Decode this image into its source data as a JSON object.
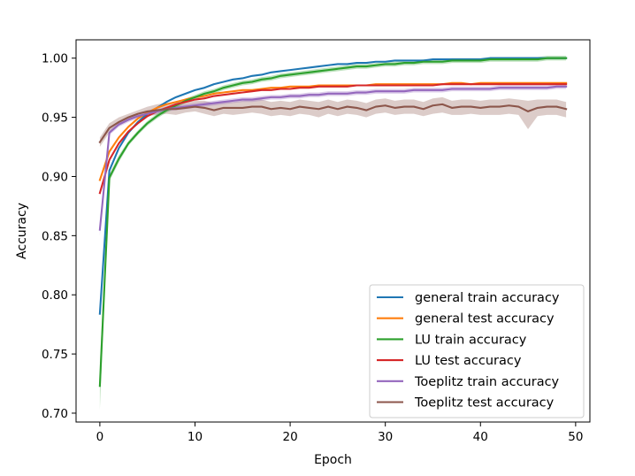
{
  "chart_data": {
    "type": "line",
    "title": "",
    "xlabel": "Epoch",
    "ylabel": "Accuracy",
    "xlim": [
      -2.5,
      51.5
    ],
    "ylim": [
      0.6925,
      1.0155
    ],
    "xticks": [
      0,
      10,
      20,
      30,
      40,
      50
    ],
    "yticks": [
      0.7,
      0.75,
      0.8,
      0.85,
      0.9,
      0.95,
      1.0
    ],
    "xtick_labels": [
      "0",
      "10",
      "20",
      "30",
      "40",
      "50"
    ],
    "ytick_labels": [
      "0.70",
      "0.75",
      "0.80",
      "0.85",
      "0.90",
      "0.95",
      "1.00"
    ],
    "grid": false,
    "legend_position": "bottom-right",
    "x": [
      0,
      1,
      2,
      3,
      4,
      5,
      6,
      7,
      8,
      9,
      10,
      11,
      12,
      13,
      14,
      15,
      16,
      17,
      18,
      19,
      20,
      21,
      22,
      23,
      24,
      25,
      26,
      27,
      28,
      29,
      30,
      31,
      32,
      33,
      34,
      35,
      36,
      37,
      38,
      39,
      40,
      41,
      42,
      43,
      44,
      45,
      46,
      47,
      48,
      49
    ],
    "series": [
      {
        "name": "general train accuracy",
        "color": "#1f77b4",
        "values": [
          0.784,
          0.905,
          0.924,
          0.937,
          0.946,
          0.953,
          0.958,
          0.963,
          0.967,
          0.97,
          0.973,
          0.975,
          0.978,
          0.98,
          0.982,
          0.983,
          0.985,
          0.986,
          0.988,
          0.989,
          0.99,
          0.991,
          0.992,
          0.993,
          0.994,
          0.995,
          0.995,
          0.996,
          0.996,
          0.997,
          0.997,
          0.998,
          0.998,
          0.998,
          0.998,
          0.999,
          0.999,
          0.999,
          0.999,
          0.999,
          0.999,
          1.0,
          1.0,
          1.0,
          1.0,
          1.0,
          1.0,
          1.0,
          1.0,
          1.0
        ]
      },
      {
        "name": "general test accuracy",
        "color": "#ff7f0e",
        "values": [
          0.897,
          0.921,
          0.933,
          0.942,
          0.949,
          0.954,
          0.958,
          0.961,
          0.963,
          0.965,
          0.967,
          0.968,
          0.97,
          0.971,
          0.972,
          0.973,
          0.973,
          0.974,
          0.975,
          0.975,
          0.976,
          0.976,
          0.976,
          0.977,
          0.977,
          0.977,
          0.977,
          0.977,
          0.977,
          0.978,
          0.978,
          0.978,
          0.978,
          0.978,
          0.978,
          0.978,
          0.978,
          0.979,
          0.979,
          0.978,
          0.979,
          0.979,
          0.979,
          0.979,
          0.979,
          0.979,
          0.979,
          0.979,
          0.979,
          0.979
        ]
      },
      {
        "name": "LU train accuracy",
        "color": "#2ca02c",
        "values": [
          0.723,
          0.899,
          0.915,
          0.928,
          0.937,
          0.945,
          0.951,
          0.956,
          0.96,
          0.964,
          0.967,
          0.97,
          0.972,
          0.975,
          0.977,
          0.979,
          0.98,
          0.982,
          0.983,
          0.985,
          0.986,
          0.987,
          0.988,
          0.989,
          0.99,
          0.991,
          0.992,
          0.993,
          0.993,
          0.994,
          0.995,
          0.995,
          0.996,
          0.996,
          0.997,
          0.997,
          0.997,
          0.998,
          0.998,
          0.998,
          0.998,
          0.999,
          0.999,
          0.999,
          0.999,
          0.999,
          0.999,
          1.0,
          1.0,
          1.0
        ]
      },
      {
        "name": "LU test accuracy",
        "color": "#d62728",
        "values": [
          0.886,
          0.914,
          0.928,
          0.938,
          0.945,
          0.951,
          0.955,
          0.958,
          0.961,
          0.963,
          0.965,
          0.966,
          0.968,
          0.969,
          0.97,
          0.971,
          0.972,
          0.973,
          0.973,
          0.974,
          0.974,
          0.975,
          0.975,
          0.976,
          0.976,
          0.976,
          0.976,
          0.977,
          0.977,
          0.977,
          0.977,
          0.977,
          0.977,
          0.977,
          0.977,
          0.977,
          0.978,
          0.978,
          0.978,
          0.978,
          0.978,
          0.978,
          0.978,
          0.978,
          0.978,
          0.978,
          0.978,
          0.978,
          0.978,
          0.978
        ]
      },
      {
        "name": "Toeplitz train accuracy",
        "color": "#9467bd",
        "values": [
          0.855,
          0.937,
          0.944,
          0.948,
          0.951,
          0.953,
          0.955,
          0.957,
          0.958,
          0.959,
          0.96,
          0.961,
          0.962,
          0.963,
          0.964,
          0.965,
          0.965,
          0.966,
          0.967,
          0.967,
          0.968,
          0.968,
          0.969,
          0.969,
          0.97,
          0.97,
          0.97,
          0.971,
          0.971,
          0.972,
          0.972,
          0.972,
          0.972,
          0.973,
          0.973,
          0.973,
          0.973,
          0.974,
          0.974,
          0.974,
          0.974,
          0.974,
          0.975,
          0.975,
          0.975,
          0.975,
          0.975,
          0.975,
          0.976,
          0.976
        ]
      },
      {
        "name": "Toeplitz test accuracy",
        "color": "#8c564b",
        "values": [
          0.929,
          0.941,
          0.946,
          0.95,
          0.953,
          0.955,
          0.956,
          0.957,
          0.957,
          0.958,
          0.959,
          0.958,
          0.956,
          0.958,
          0.958,
          0.958,
          0.959,
          0.959,
          0.957,
          0.958,
          0.957,
          0.959,
          0.958,
          0.957,
          0.959,
          0.957,
          0.959,
          0.958,
          0.956,
          0.959,
          0.96,
          0.958,
          0.959,
          0.959,
          0.957,
          0.96,
          0.961,
          0.958,
          0.959,
          0.959,
          0.958,
          0.959,
          0.959,
          0.96,
          0.959,
          0.955,
          0.958,
          0.959,
          0.959,
          0.957
        ]
      }
    ],
    "bands": [
      {
        "series": "Toeplitz test accuracy",
        "color": "#8c564b",
        "lower": [
          0.925,
          0.937,
          0.943,
          0.947,
          0.95,
          0.951,
          0.952,
          0.953,
          0.952,
          0.954,
          0.955,
          0.953,
          0.951,
          0.953,
          0.952,
          0.953,
          0.954,
          0.953,
          0.951,
          0.952,
          0.951,
          0.953,
          0.952,
          0.95,
          0.953,
          0.951,
          0.953,
          0.952,
          0.95,
          0.953,
          0.954,
          0.952,
          0.953,
          0.953,
          0.951,
          0.953,
          0.954,
          0.952,
          0.952,
          0.953,
          0.952,
          0.952,
          0.952,
          0.953,
          0.952,
          0.94,
          0.951,
          0.952,
          0.952,
          0.95
        ],
        "upper": [
          0.933,
          0.945,
          0.95,
          0.953,
          0.956,
          0.959,
          0.961,
          0.962,
          0.963,
          0.963,
          0.964,
          0.964,
          0.962,
          0.963,
          0.963,
          0.964,
          0.965,
          0.965,
          0.963,
          0.964,
          0.963,
          0.965,
          0.964,
          0.963,
          0.965,
          0.963,
          0.965,
          0.964,
          0.962,
          0.965,
          0.966,
          0.964,
          0.965,
          0.965,
          0.963,
          0.966,
          0.967,
          0.964,
          0.965,
          0.965,
          0.964,
          0.965,
          0.965,
          0.966,
          0.965,
          0.964,
          0.965,
          0.965,
          0.965,
          0.963
        ]
      },
      {
        "series": "Toeplitz train accuracy",
        "color": "#9467bd",
        "lower": [
          0.85,
          0.935,
          0.942,
          0.946,
          0.949,
          0.951,
          0.953,
          0.955,
          0.956,
          0.957,
          0.958,
          0.959,
          0.96,
          0.961,
          0.962,
          0.963,
          0.963,
          0.964,
          0.965,
          0.965,
          0.966,
          0.966,
          0.967,
          0.967,
          0.968,
          0.968,
          0.968,
          0.969,
          0.969,
          0.97,
          0.97,
          0.97,
          0.97,
          0.971,
          0.971,
          0.971,
          0.971,
          0.972,
          0.972,
          0.972,
          0.972,
          0.972,
          0.973,
          0.973,
          0.973,
          0.973,
          0.973,
          0.973,
          0.974,
          0.974
        ],
        "upper": [
          0.86,
          0.939,
          0.946,
          0.95,
          0.953,
          0.955,
          0.957,
          0.959,
          0.96,
          0.961,
          0.962,
          0.963,
          0.964,
          0.965,
          0.966,
          0.967,
          0.967,
          0.968,
          0.969,
          0.969,
          0.97,
          0.97,
          0.971,
          0.971,
          0.972,
          0.972,
          0.972,
          0.973,
          0.973,
          0.974,
          0.974,
          0.974,
          0.974,
          0.975,
          0.975,
          0.975,
          0.975,
          0.976,
          0.976,
          0.976,
          0.976,
          0.976,
          0.977,
          0.977,
          0.977,
          0.977,
          0.977,
          0.977,
          0.978,
          0.978
        ]
      },
      {
        "series": "LU train accuracy",
        "color": "#2ca02c",
        "lower": [
          0.703,
          0.896,
          0.912,
          0.926,
          0.935,
          0.943,
          0.949,
          0.954,
          0.958,
          0.962,
          0.965,
          0.968,
          0.97,
          0.973,
          0.975,
          0.977,
          0.978,
          0.98,
          0.981,
          0.983,
          0.984,
          0.985,
          0.986,
          0.987,
          0.988,
          0.989,
          0.99,
          0.991,
          0.991,
          0.992,
          0.993,
          0.993,
          0.994,
          0.994,
          0.995,
          0.995,
          0.995,
          0.996,
          0.996,
          0.996,
          0.996,
          0.997,
          0.997,
          0.997,
          0.997,
          0.997,
          0.997,
          0.998,
          0.998,
          0.998
        ],
        "upper": [
          0.743,
          0.902,
          0.918,
          0.93,
          0.939,
          0.947,
          0.953,
          0.958,
          0.962,
          0.966,
          0.969,
          0.972,
          0.974,
          0.977,
          0.979,
          0.981,
          0.982,
          0.984,
          0.985,
          0.987,
          0.988,
          0.989,
          0.99,
          0.991,
          0.992,
          0.993,
          0.994,
          0.995,
          0.995,
          0.996,
          0.997,
          0.997,
          0.998,
          0.998,
          0.999,
          0.999,
          0.999,
          1.0,
          1.0,
          1.0,
          1.0,
          1.001,
          1.001,
          1.001,
          1.001,
          1.001,
          1.001,
          1.002,
          1.002,
          1.002
        ]
      }
    ]
  }
}
